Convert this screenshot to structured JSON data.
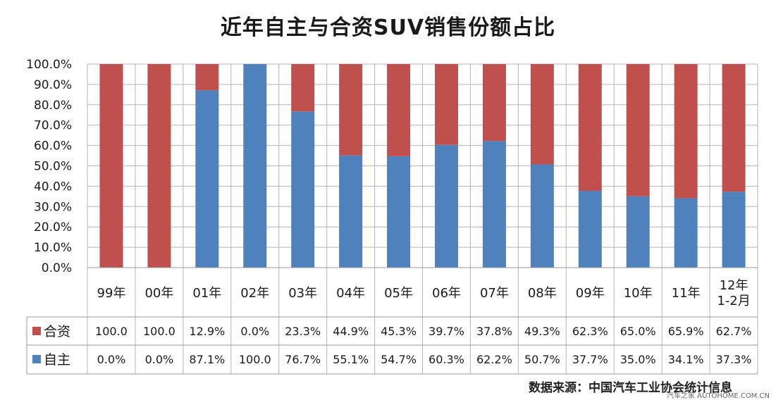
{
  "title": "近年自主与合资SUV销售份额占比",
  "source_note": "数据来源：中国汽车工业协会统计信息",
  "watermark": "汽车之家 AUTOHOME.COM.CN",
  "colors": {
    "joint": "#C0504D",
    "domestic": "#4F81BD",
    "grid": "#b5b5b5",
    "border": "#9a9a9a"
  },
  "chart_data": {
    "type": "bar",
    "stacked": true,
    "normalized_percent": true,
    "categories": [
      "99年",
      "00年",
      "01年",
      "02年",
      "03年",
      "04年",
      "05年",
      "06年",
      "07年",
      "08年",
      "09年",
      "10年",
      "11年",
      "12年\n1-2月"
    ],
    "series": [
      {
        "name": "自主",
        "color": "#4F81BD",
        "values": [
          0.0,
          0.0,
          87.1,
          100.0,
          76.7,
          55.1,
          54.7,
          60.3,
          62.2,
          50.7,
          37.7,
          35.0,
          34.1,
          37.3
        ],
        "labels": [
          "0.0%",
          "0.0%",
          "87.1%",
          "100.0",
          "76.7%",
          "55.1%",
          "54.7%",
          "60.3%",
          "62.2%",
          "50.7%",
          "37.7%",
          "35.0%",
          "34.1%",
          "37.3%"
        ]
      },
      {
        "name": "合资",
        "color": "#C0504D",
        "values": [
          100.0,
          100.0,
          12.9,
          0.0,
          23.3,
          44.9,
          45.3,
          39.7,
          37.8,
          49.3,
          62.3,
          65.0,
          65.9,
          62.7
        ],
        "labels": [
          "100.0",
          "100.0",
          "12.9%",
          "0.0%",
          "23.3%",
          "44.9%",
          "45.3%",
          "39.7%",
          "37.8%",
          "49.3%",
          "62.3%",
          "65.0%",
          "65.9%",
          "62.7%"
        ]
      }
    ],
    "table_row_order": [
      "合资",
      "自主"
    ],
    "yticks": [
      "0.0%",
      "10.0%",
      "20.0%",
      "30.0%",
      "40.0%",
      "50.0%",
      "60.0%",
      "70.0%",
      "80.0%",
      "90.0%",
      "100.0%"
    ],
    "ylim": [
      0,
      100
    ],
    "grid": true,
    "legend": "data-table"
  }
}
